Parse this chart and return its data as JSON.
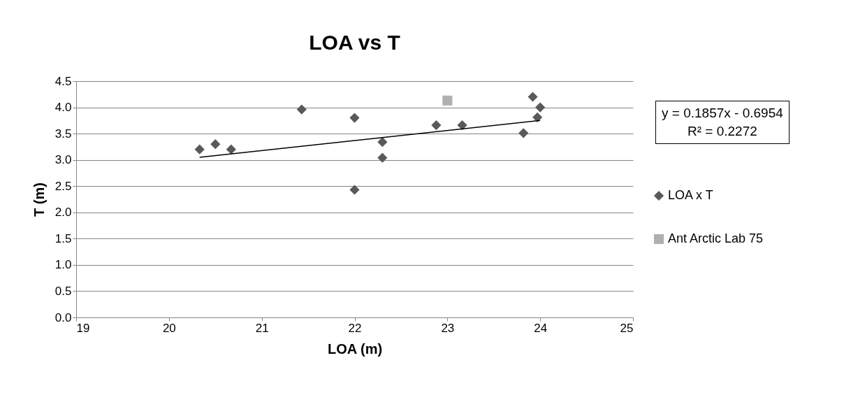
{
  "chart_data": {
    "type": "scatter",
    "title": "LOA vs T",
    "xlabel": "LOA (m)",
    "ylabel": "T (m)",
    "xlim": [
      19,
      25
    ],
    "xticks": [
      19,
      20,
      21,
      22,
      23,
      24,
      25
    ],
    "ylim": [
      0,
      4.5
    ],
    "yticks": [
      {
        "value": 0,
        "label": "0.0"
      },
      {
        "value": 0.5,
        "label": "0.5"
      },
      {
        "value": 1,
        "label": "1.0"
      },
      {
        "value": 1.5,
        "label": "1.5"
      },
      {
        "value": 2,
        "label": "2.0"
      },
      {
        "value": 2.5,
        "label": "2.5"
      },
      {
        "value": 3,
        "label": "3.0"
      },
      {
        "value": 3.5,
        "label": "3.5"
      },
      {
        "value": 4,
        "label": "4.0"
      },
      {
        "value": 4.5,
        "label": "4.5"
      }
    ],
    "grid": "y",
    "legend": "right",
    "annotations": [
      "y = 0.1857x - 0.6954",
      "R² = 0.2272"
    ],
    "series": [
      {
        "name": "LOA x T",
        "type": "scatter",
        "marker": "diamond",
        "color": "#595959",
        "x": [
          20.33,
          20.5,
          20.67,
          21.43,
          22.0,
          22.3,
          22.3,
          22.0,
          22.88,
          23.16,
          23.92,
          24.0,
          23.97,
          23.82
        ],
        "values": [
          3.2,
          3.3,
          3.2,
          3.96,
          3.8,
          3.34,
          3.04,
          2.43,
          3.66,
          3.66,
          4.2,
          4.0,
          3.81,
          3.51
        ]
      },
      {
        "name": "Ant Arctic Lab 75",
        "type": "scatter",
        "marker": "square",
        "color": "#b0b0b0",
        "x": [
          23.0
        ],
        "values": [
          4.13
        ]
      },
      {
        "type": "line",
        "color": "#000000",
        "line_style": "solid",
        "x": [
          20.33,
          24.0
        ],
        "values": [
          3.05,
          3.75
        ]
      }
    ]
  }
}
